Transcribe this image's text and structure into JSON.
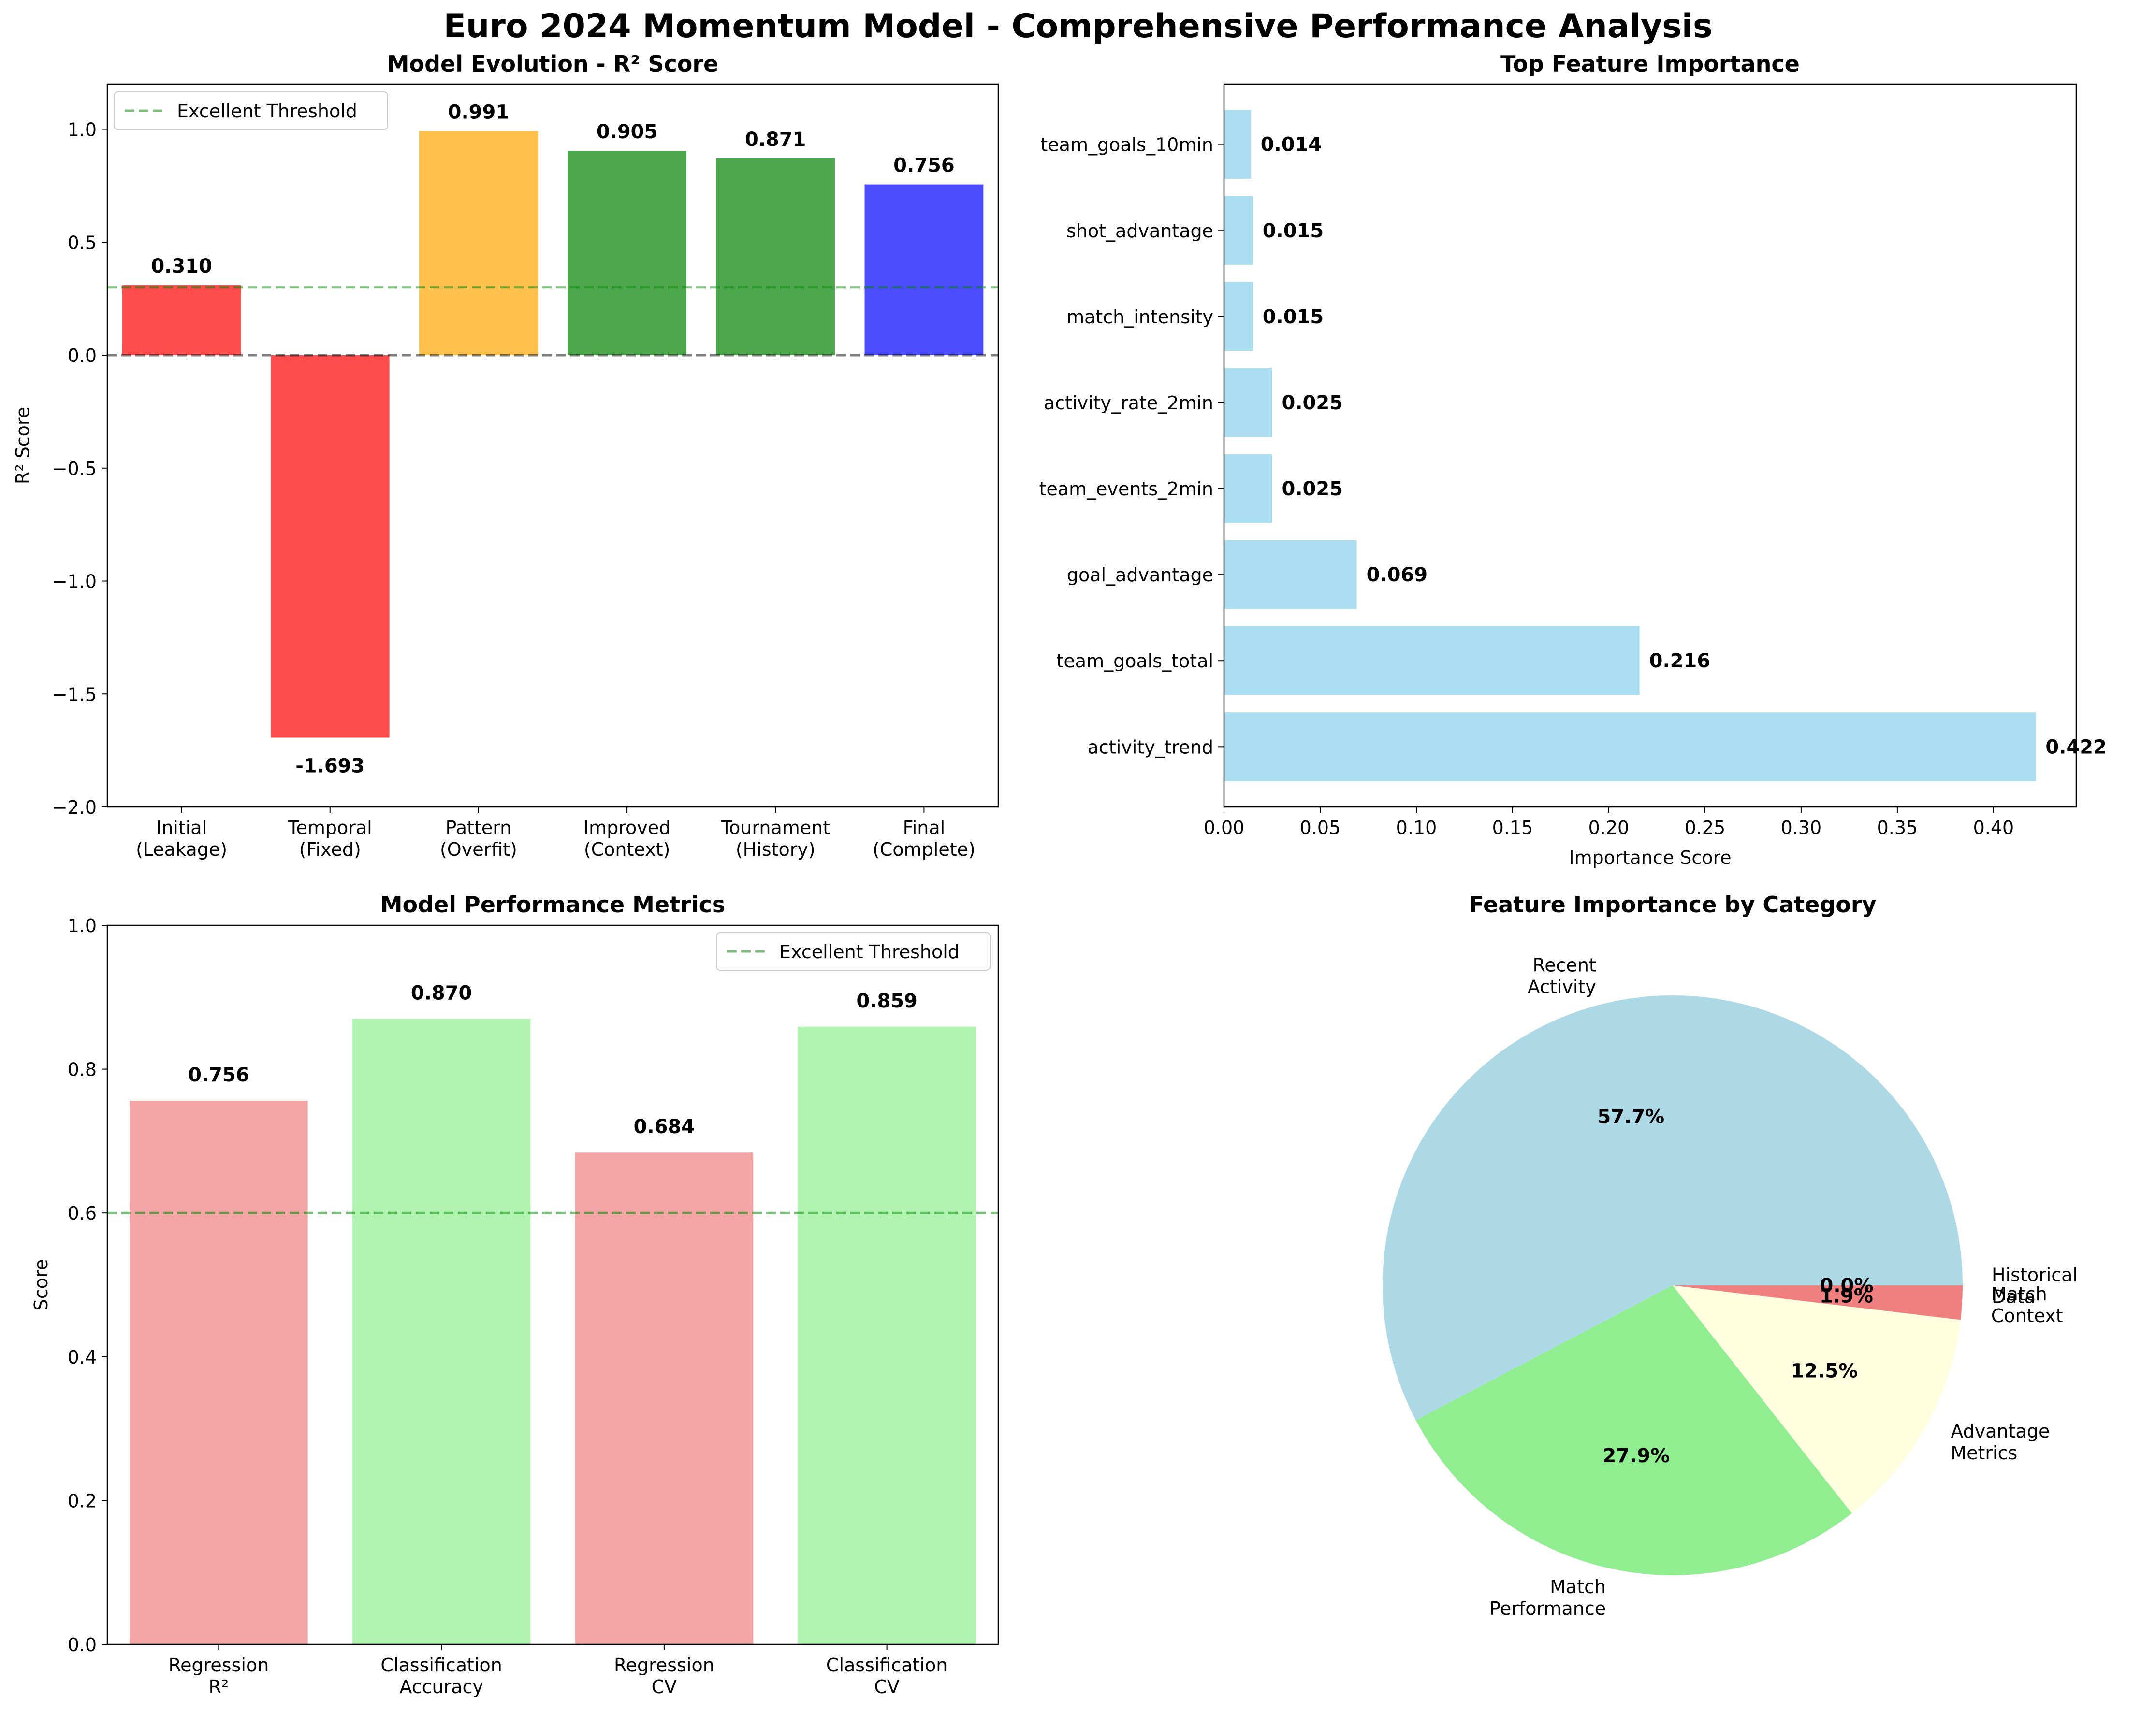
{
  "figure_title": "Euro 2024 Momentum Model - Comprehensive Performance Analysis",
  "chart_data": [
    {
      "id": "evolution",
      "type": "bar",
      "title": "Model Evolution - R² Score",
      "ylabel": "R² Score",
      "xlabel": "",
      "categories": [
        [
          "Initial",
          "(Leakage)"
        ],
        [
          "Temporal",
          "(Fixed)"
        ],
        [
          "Pattern",
          "(Overfit)"
        ],
        [
          "Improved",
          "(Context)"
        ],
        [
          "Tournament",
          "(History)"
        ],
        [
          "Final",
          "(Complete)"
        ]
      ],
      "values": [
        0.31,
        -1.693,
        0.991,
        0.905,
        0.871,
        0.756
      ],
      "value_labels": [
        "0.310",
        "-1.693",
        "0.991",
        "0.905",
        "0.871",
        "0.756"
      ],
      "colors": [
        "#ff0000",
        "#ff0000",
        "#ffa500",
        "#008000",
        "#008000",
        "#0000ff"
      ],
      "bar_opacity": 0.7,
      "ylim": [
        -2.0,
        1.2
      ],
      "yticks": [
        -2.0,
        -1.5,
        -1.0,
        -0.5,
        0.0,
        0.5,
        1.0
      ],
      "ytick_labels": [
        "−2.0",
        "−1.5",
        "−1.0",
        "−0.5",
        "0.0",
        "0.5",
        "1.0"
      ],
      "threshold": {
        "value": 0.3,
        "label": "Excellent Threshold",
        "color": "#008000"
      },
      "zero_line": {
        "value": 0.0,
        "color": "#000000"
      },
      "legend_position": "upper-left",
      "grid": false
    },
    {
      "id": "features",
      "type": "bar",
      "orientation": "horizontal",
      "title": "Top Feature Importance",
      "xlabel": "Importance Score",
      "ylabel": "",
      "categories": [
        "activity_trend",
        "team_goals_total",
        "goal_advantage",
        "team_events_2min",
        "activity_rate_2min",
        "match_intensity",
        "shot_advantage",
        "team_goals_10min"
      ],
      "values": [
        0.422,
        0.216,
        0.069,
        0.025,
        0.025,
        0.015,
        0.015,
        0.014
      ],
      "value_labels": [
        "0.422",
        "0.216",
        "0.069",
        "0.025",
        "0.025",
        "0.015",
        "0.015",
        "0.014"
      ],
      "color": "#87ceeb",
      "bar_opacity": 0.7,
      "xlim": [
        0.0,
        0.443
      ],
      "xticks": [
        0.0,
        0.05,
        0.1,
        0.15,
        0.2,
        0.25,
        0.3,
        0.35,
        0.4
      ],
      "xtick_labels": [
        "0.00",
        "0.05",
        "0.10",
        "0.15",
        "0.20",
        "0.25",
        "0.30",
        "0.35",
        "0.40"
      ],
      "grid": false
    },
    {
      "id": "metrics",
      "type": "bar",
      "title": "Model Performance Metrics",
      "ylabel": "Score",
      "xlabel": "",
      "categories": [
        [
          "Regression",
          "R²"
        ],
        [
          "Classification",
          "Accuracy"
        ],
        [
          "Regression",
          "CV"
        ],
        [
          "Classification",
          "CV"
        ]
      ],
      "values": [
        0.756,
        0.87,
        0.684,
        0.859
      ],
      "value_labels": [
        "0.756",
        "0.870",
        "0.684",
        "0.859"
      ],
      "colors": [
        "#f08080",
        "#90ee90",
        "#f08080",
        "#90ee90"
      ],
      "bar_opacity": 0.7,
      "ylim": [
        0.0,
        1.0
      ],
      "yticks": [
        0.0,
        0.2,
        0.4,
        0.6,
        0.8,
        1.0
      ],
      "ytick_labels": [
        "0.0",
        "0.2",
        "0.4",
        "0.6",
        "0.8",
        "1.0"
      ],
      "threshold": {
        "value": 0.6,
        "label": "Excellent Threshold",
        "color": "#008000"
      },
      "legend_position": "upper-right",
      "grid": false
    },
    {
      "id": "categories",
      "type": "pie",
      "title": "Feature Importance by Category",
      "labels": [
        [
          "Recent",
          "Activity"
        ],
        [
          "Match",
          "Performance"
        ],
        [
          "Advantage",
          "Metrics"
        ],
        [
          "Match",
          "Context"
        ],
        [
          "Historical",
          "Data"
        ]
      ],
      "values": [
        57.7,
        27.9,
        12.5,
        1.9,
        0.0
      ],
      "pct_labels": [
        "57.7%",
        "27.9%",
        "12.5%",
        "1.9%",
        "0.0%"
      ],
      "colors": [
        "#add8e6",
        "#90ee90",
        "#ffffe0",
        "#f08080",
        "#ffb6c1"
      ]
    }
  ]
}
